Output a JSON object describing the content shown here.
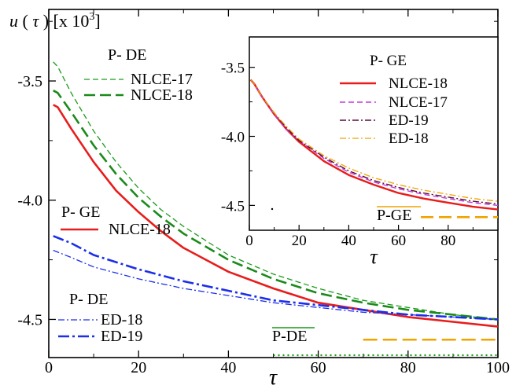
{
  "chart_data": [
    {
      "type": "line",
      "role": "main",
      "ylabel_var": "u",
      "ylabel_arg": "τ",
      "ylabel_unit": "[x 10",
      "ylabel_exp": "3",
      "ylabel_close": "]",
      "xlabel": "τ",
      "xlim": [
        0,
        100
      ],
      "ylim": [
        -4.66,
        -3.2
      ],
      "xticks": [
        0,
        20,
        40,
        60,
        80,
        100
      ],
      "yticks": [
        -3.5,
        -4.0,
        -4.5
      ],
      "ytick_labels": [
        "-3.5",
        "-4.0",
        "-4.5"
      ],
      "legend_groups": [
        {
          "header": "P- DE",
          "entries": [
            "NLCE-17",
            "NLCE-18"
          ]
        },
        {
          "header": "P- GE",
          "entries": [
            "NLCE-18"
          ]
        },
        {
          "header": "P- DE",
          "entries": [
            "ED-18",
            "ED-19"
          ]
        }
      ],
      "series": [
        {
          "name": "NLCE-17",
          "ensemble": "P- DE",
          "color": "#1a9a1a",
          "dash": "7,4",
          "width": 1.3,
          "x": [
            1,
            2,
            5,
            10,
            15,
            20,
            25,
            30,
            40,
            50,
            60,
            70,
            80,
            90,
            100
          ],
          "y": [
            -3.42,
            -3.44,
            -3.55,
            -3.71,
            -3.84,
            -3.95,
            -4.04,
            -4.11,
            -4.23,
            -4.31,
            -4.37,
            -4.42,
            -4.45,
            -4.48,
            -4.5
          ]
        },
        {
          "name": "NLCE-18",
          "ensemble": "P- DE",
          "color": "#1a8a1a",
          "dash": "14,6",
          "width": 2.6,
          "x": [
            1,
            2,
            5,
            10,
            15,
            20,
            25,
            30,
            40,
            50,
            60,
            70,
            80,
            90,
            100
          ],
          "y": [
            -3.54,
            -3.55,
            -3.63,
            -3.77,
            -3.89,
            -3.99,
            -4.07,
            -4.14,
            -4.25,
            -4.33,
            -4.39,
            -4.43,
            -4.46,
            -4.48,
            -4.5
          ]
        },
        {
          "name": "NLCE-18",
          "ensemble": "P- GE",
          "color": "#e81c1c",
          "dash": "",
          "width": 2.6,
          "x": [
            1,
            2,
            5,
            10,
            15,
            20,
            25,
            30,
            40,
            50,
            60,
            70,
            80,
            90,
            100
          ],
          "y": [
            -3.6,
            -3.61,
            -3.7,
            -3.84,
            -3.96,
            -4.05,
            -4.13,
            -4.2,
            -4.3,
            -4.37,
            -4.43,
            -4.46,
            -4.49,
            -4.51,
            -4.53
          ]
        },
        {
          "name": "ED-18",
          "ensemble": "P- DE",
          "color": "#1c2ee8",
          "dash": "8,3,2,3",
          "width": 1.3,
          "x": [
            1,
            5,
            10,
            20,
            30,
            40,
            50,
            60,
            70,
            80,
            90,
            100
          ],
          "y": [
            -4.21,
            -4.24,
            -4.28,
            -4.33,
            -4.37,
            -4.4,
            -4.43,
            -4.45,
            -4.47,
            -4.48,
            -4.49,
            -4.5
          ]
        },
        {
          "name": "ED-19",
          "ensemble": "P- DE",
          "color": "#1c2ee8",
          "dash": "14,4,3,4",
          "width": 2.6,
          "x": [
            1,
            5,
            10,
            20,
            30,
            40,
            50,
            60,
            70,
            80,
            90,
            100
          ],
          "y": [
            -4.15,
            -4.18,
            -4.23,
            -4.29,
            -4.34,
            -4.38,
            -4.42,
            -4.44,
            -4.46,
            -4.48,
            -4.49,
            -4.5
          ]
        }
      ],
      "reference_lines": [
        {
          "label": "P-DE",
          "overline": true,
          "label_color": "#1a9a1a",
          "color": "#1a9a1a",
          "dash": "2,4",
          "width": 2.2,
          "y": -4.65,
          "x_range": [
            50,
            100
          ]
        },
        {
          "label": "",
          "color": "#f0a400",
          "dash": "18,7",
          "width": 2.6,
          "y": -4.585,
          "x_range": [
            70,
            100
          ]
        }
      ]
    },
    {
      "type": "line",
      "role": "inset",
      "xlabel": "τ",
      "xlim": [
        0,
        100
      ],
      "ylim": [
        -4.68,
        -3.28
      ],
      "xticks": [
        0,
        20,
        40,
        60,
        80
      ],
      "yticks": [
        -3.5,
        -4.0,
        -4.5
      ],
      "ytick_labels": [
        "-3.5",
        "-4.0",
        "-4.5"
      ],
      "legend_header": "P- GE",
      "series": [
        {
          "name": "NLCE-18",
          "color": "#e81c1c",
          "dash": "",
          "width": 2.4,
          "x": [
            0.5,
            2,
            5,
            10,
            15,
            20,
            30,
            40,
            50,
            60,
            70,
            80,
            90,
            100
          ],
          "y": [
            -3.59,
            -3.62,
            -3.71,
            -3.84,
            -3.95,
            -4.04,
            -4.18,
            -4.28,
            -4.35,
            -4.41,
            -4.45,
            -4.48,
            -4.51,
            -4.53
          ]
        },
        {
          "name": "NLCE-17",
          "color": "#c23bd8",
          "dash": "7,4",
          "width": 1.4,
          "x": [
            0.5,
            2,
            5,
            10,
            15,
            20,
            30,
            40,
            50,
            60,
            70,
            80,
            90,
            100
          ],
          "y": [
            -3.59,
            -3.62,
            -3.71,
            -3.84,
            -3.95,
            -4.03,
            -4.16,
            -4.26,
            -4.33,
            -4.38,
            -4.42,
            -4.45,
            -4.48,
            -4.5
          ]
        },
        {
          "name": "ED-19",
          "color": "#5a0a3a",
          "dash": "8,3,2,3",
          "width": 1.4,
          "x": [
            0.5,
            2,
            5,
            10,
            15,
            20,
            30,
            40,
            50,
            60,
            70,
            80,
            90,
            100
          ],
          "y": [
            -3.59,
            -3.62,
            -3.71,
            -3.83,
            -3.94,
            -4.03,
            -4.15,
            -4.25,
            -4.32,
            -4.37,
            -4.41,
            -4.44,
            -4.47,
            -4.49
          ]
        },
        {
          "name": "ED-18",
          "color": "#f0a400",
          "dash": "8,3,2,3",
          "width": 1.3,
          "x": [
            0.5,
            2,
            5,
            10,
            15,
            20,
            30,
            40,
            50,
            60,
            70,
            80,
            90,
            100
          ],
          "y": [
            -3.59,
            -3.62,
            -3.71,
            -3.83,
            -3.93,
            -4.02,
            -4.14,
            -4.23,
            -4.3,
            -4.35,
            -4.39,
            -4.42,
            -4.45,
            -4.47
          ]
        }
      ],
      "reference_lines": [
        {
          "label": "P-GE",
          "overline": true,
          "label_color": "#f0a400",
          "color": "#f0a400",
          "dash": "16,7",
          "width": 2.6,
          "y": -4.585,
          "x_range": [
            69,
            100
          ]
        }
      ]
    }
  ]
}
